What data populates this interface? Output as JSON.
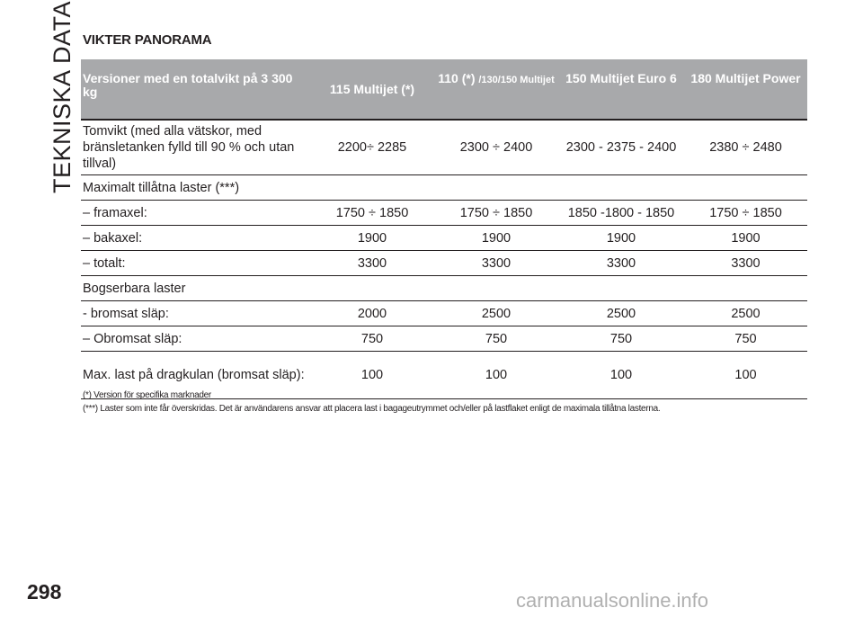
{
  "side_title": "TEKNISKA DATA",
  "section_title": "VIKTER PANORAMA",
  "table": {
    "header_label": "Versioner med en totalvikt på 3 300 kg",
    "headers": [
      {
        "main": "115 Multijet (*)",
        "sub": ""
      },
      {
        "main": "110 (*) ",
        "sub": "/130/150 Multijet"
      },
      {
        "main": "150 Multijet Euro 6",
        "sub": ""
      },
      {
        "main": "180 Multijet Power",
        "sub": ""
      }
    ],
    "rows": [
      {
        "label": "Tomvikt (med alla vätskor, med bränsletanken fylld till 90 % och utan tillval)",
        "values": [
          "2200÷ 2285",
          "2300 ÷ 2400",
          "2300 - 2375 - 2400",
          "2380 ÷ 2480"
        ]
      },
      {
        "label": "Maximalt tillåtna laster (***)",
        "values": [
          "",
          "",
          "",
          ""
        ]
      },
      {
        "label": "– framaxel:",
        "values": [
          "1750 ÷ 1850",
          "1750 ÷ 1850",
          "1850 -1800 - 1850",
          "1750 ÷ 1850"
        ]
      },
      {
        "label": "– bakaxel:",
        "values": [
          "1900",
          "1900",
          "1900",
          "1900"
        ]
      },
      {
        "label": "– totalt:",
        "values": [
          "3300",
          "3300",
          "3300",
          "3300"
        ]
      },
      {
        "label": "Bogserbara laster",
        "values": [
          "",
          "",
          "",
          ""
        ]
      },
      {
        "label": "- bromsat släp:",
        "values": [
          "2000",
          "2500",
          "2500",
          "2500"
        ]
      },
      {
        "label": "– Obromsat släp:",
        "values": [
          "750",
          "750",
          "750",
          "750"
        ]
      },
      {
        "label": "Max. last på dragkulan (bromsat släp):",
        "values": [
          "100",
          "100",
          "100",
          "100"
        ]
      }
    ]
  },
  "notes": [
    "(*) Version för specifika marknader",
    "(***) Laster som inte får överskridas. Det är användarens ansvar att placera last i bagageutrymmet och/eller på lastflaket enligt de maximala tillåtna lasterna."
  ],
  "page_number": "298",
  "watermark": "carmanualsonline.info"
}
